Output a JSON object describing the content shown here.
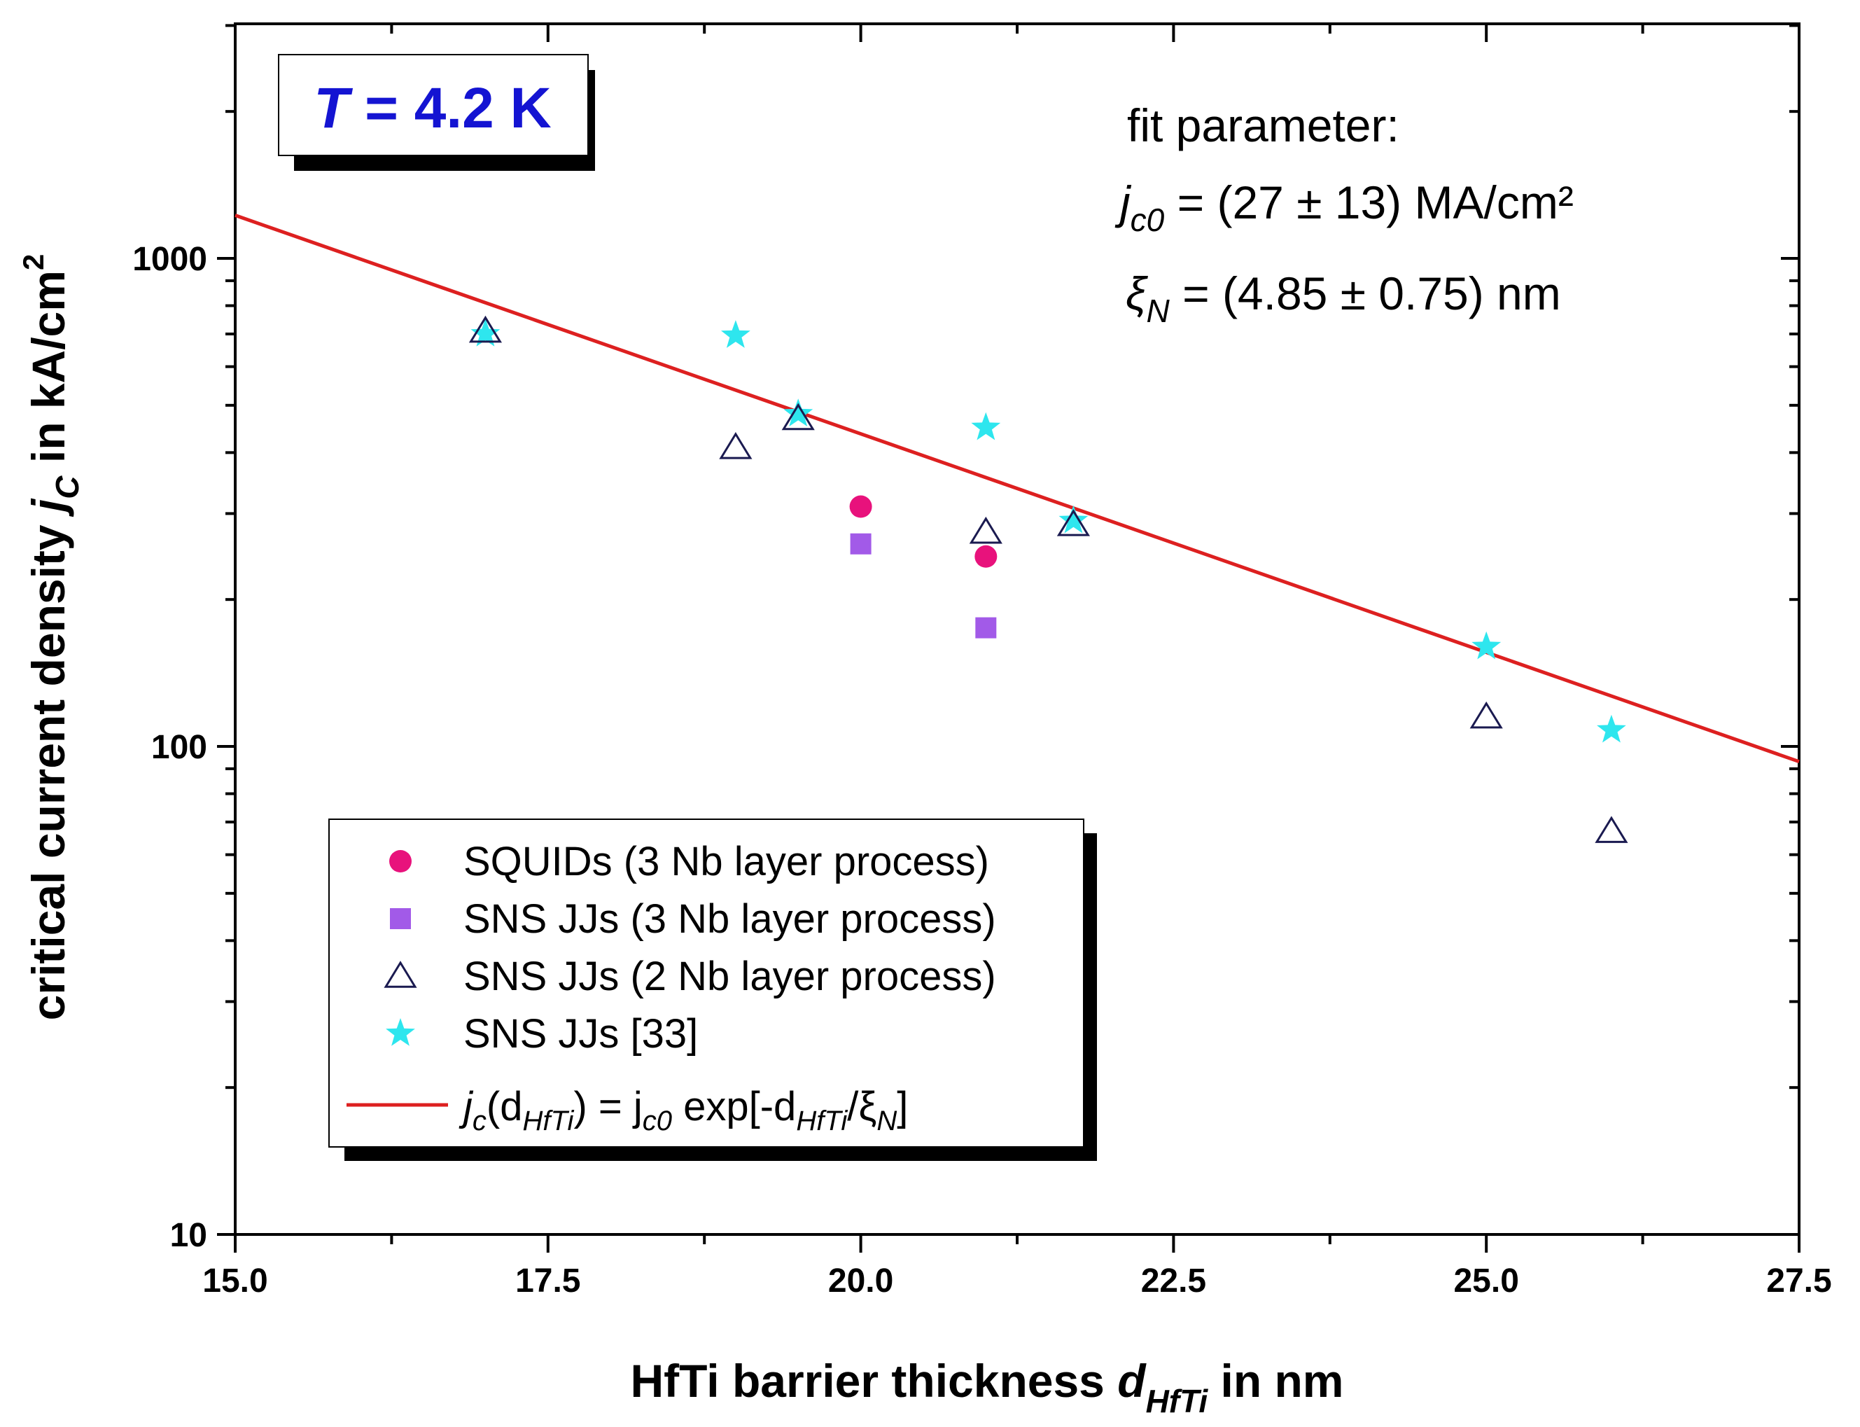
{
  "chart_data": {
    "type": "scatter",
    "xlabel": {
      "main": "HfTi barrier thickness ",
      "var": "d",
      "sub": "HfTi",
      "tail": " in nm"
    },
    "ylabel": {
      "main": "critical current density ",
      "var": "j",
      "sub": "C",
      "tail": " in kA/cm",
      "sup": "2"
    },
    "xlim": [
      15.0,
      27.5
    ],
    "ylim": [
      10,
      3000
    ],
    "yscale": "log",
    "x_ticks": [
      15.0,
      17.5,
      20.0,
      22.5,
      25.0,
      27.5
    ],
    "x_tick_labels": [
      "15.0",
      "17.5",
      "20.0",
      "22.5",
      "25.0",
      "27.5"
    ],
    "y_ticks": [
      10,
      100,
      1000
    ],
    "y_tick_labels": [
      "10",
      "100",
      "1000"
    ],
    "series": [
      {
        "name": "SQUIDs (3 Nb layer process)",
        "marker": "circle",
        "color": "#e8127c",
        "x": [
          20.0,
          21.0
        ],
        "y": [
          310,
          245
        ]
      },
      {
        "name": "SNS JJs (3 Nb layer process)",
        "marker": "square",
        "color": "#a25ae8",
        "x": [
          20.0,
          21.0
        ],
        "y": [
          260,
          175
        ]
      },
      {
        "name": "SNS JJs (2 Nb layer process)",
        "marker": "triangle-open",
        "color": "#1a1a50",
        "x": [
          17.0,
          19.0,
          19.5,
          21.0,
          21.7,
          25.0,
          26.0
        ],
        "y": [
          710,
          410,
          470,
          275,
          285,
          115,
          67
        ]
      },
      {
        "name": "SNS JJs [33]",
        "marker": "star",
        "color": "#2ee6ee",
        "x": [
          17.0,
          19.0,
          19.5,
          21.0,
          21.7,
          25.0,
          26.0
        ],
        "y": [
          700,
          695,
          480,
          450,
          290,
          160,
          108
        ]
      }
    ],
    "fit": {
      "name": "fit",
      "color": "#dd2020",
      "jc0": 27000,
      "xiN": 4.85,
      "legend_label": {
        "a": "j",
        "a_sub": "c",
        "b": "(d",
        "b_sub": "HfTi",
        "c": ") = j",
        "c_sub": "c0",
        "d": " exp[-d",
        "d_sub": "HfTi",
        "e": "/ξ",
        "e_sub": "N",
        "f": "]"
      }
    },
    "annotations": {
      "temperature": {
        "var": "T",
        "rest": " = 4.2 K"
      },
      "fit_title": "fit parameter:",
      "fit_jc0": {
        "var": "j",
        "sub": "c0",
        "rest": " = (27 ± 13) MA/cm²"
      },
      "fit_xi": {
        "var": "ξ",
        "sub": "N",
        "rest": " = (4.85 ± 0.75) nm"
      }
    },
    "legend_position": "lower-left"
  }
}
